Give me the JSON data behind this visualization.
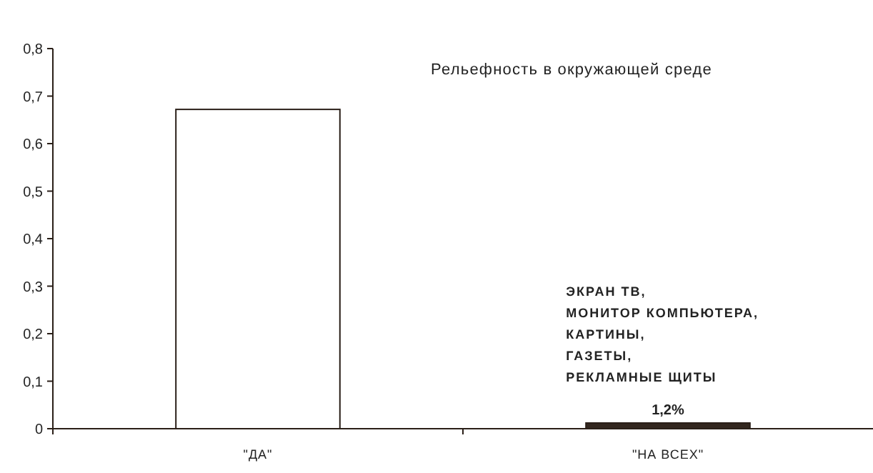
{
  "chart_data": {
    "type": "bar",
    "title": "Рельефность в окружающей среде",
    "categories": [
      "\"ДА\"",
      "\"НА ВСЕХ\""
    ],
    "values": [
      0.672,
      0.012
    ],
    "colors": [
      "#ffffff",
      "#33271f"
    ],
    "value_labels": [
      null,
      "1,2%"
    ],
    "annotations": [
      "ЭКРАН ТВ,\nМОНИТОР КОМПЬЮТЕРА,\nКАРТИНЫ,\nГАЗЕТЫ,\nРЕКЛАМНЫЕ ЩИТЫ"
    ],
    "ylim": [
      0,
      0.8
    ],
    "yticks": [
      {
        "value": 0,
        "label": "0"
      },
      {
        "value": 0.1,
        "label": "0,1"
      },
      {
        "value": 0.2,
        "label": "0,2"
      },
      {
        "value": 0.3,
        "label": "0,3"
      },
      {
        "value": 0.4,
        "label": "0,4"
      },
      {
        "value": 0.5,
        "label": "0,5"
      },
      {
        "value": 0.6,
        "label": "0,6"
      },
      {
        "value": 0.7,
        "label": "0,7"
      },
      {
        "value": 0.8,
        "label": "0,8"
      }
    ],
    "grid": false
  }
}
